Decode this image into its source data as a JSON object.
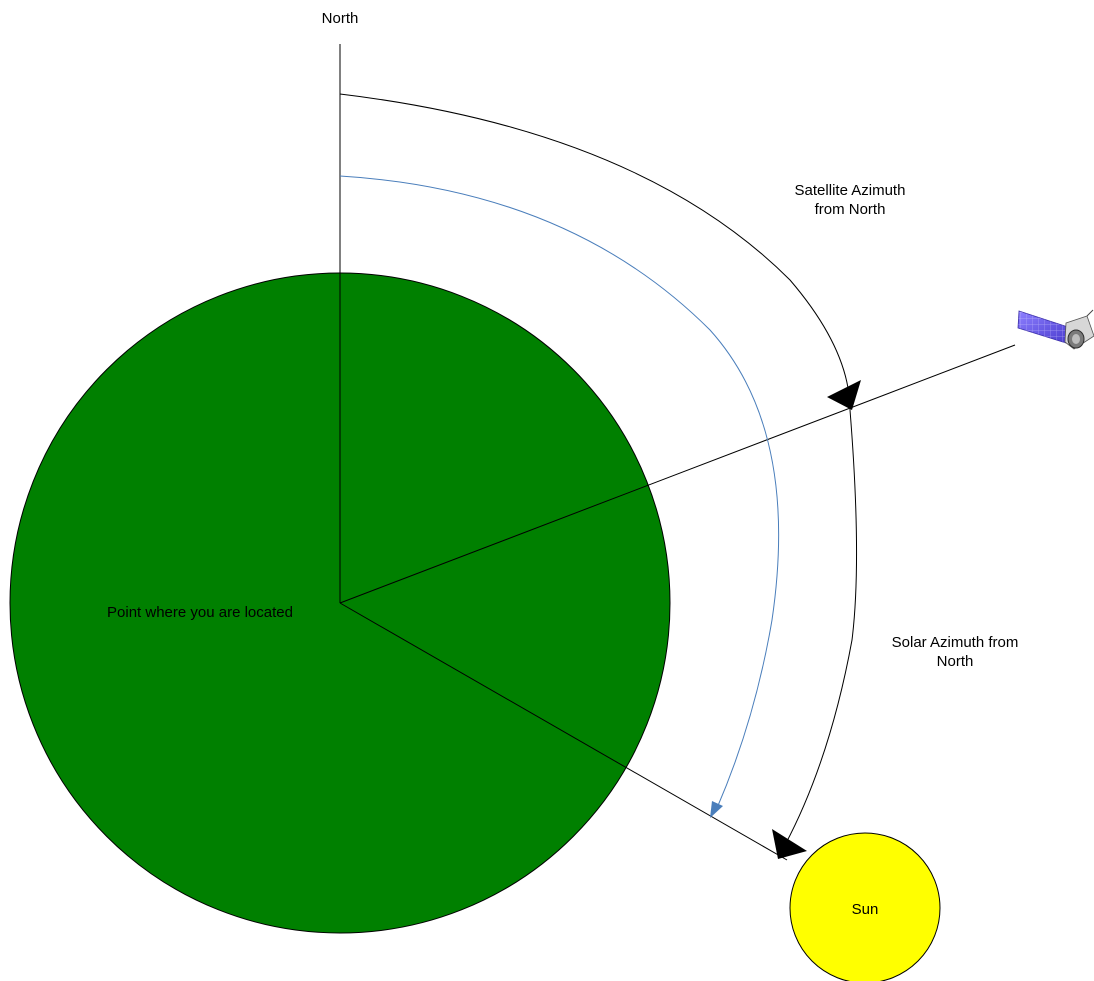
{
  "diagram": {
    "labels": {
      "north": "North",
      "location": "Point where you are located",
      "satellite_azimuth_line1": "Satellite Azimuth",
      "satellite_azimuth_line2": "from North",
      "solar_azimuth_line1": "Solar Azimuth from",
      "solar_azimuth_line2": "North",
      "sun": "Sun"
    },
    "icons": {
      "satellite": "satellite-icon",
      "sun": "sun-disc"
    },
    "colors": {
      "ground_fill": "#008000",
      "sun_fill": "#ffff00",
      "line": "#000000",
      "satellite_arc": "#4a7ebb"
    }
  }
}
